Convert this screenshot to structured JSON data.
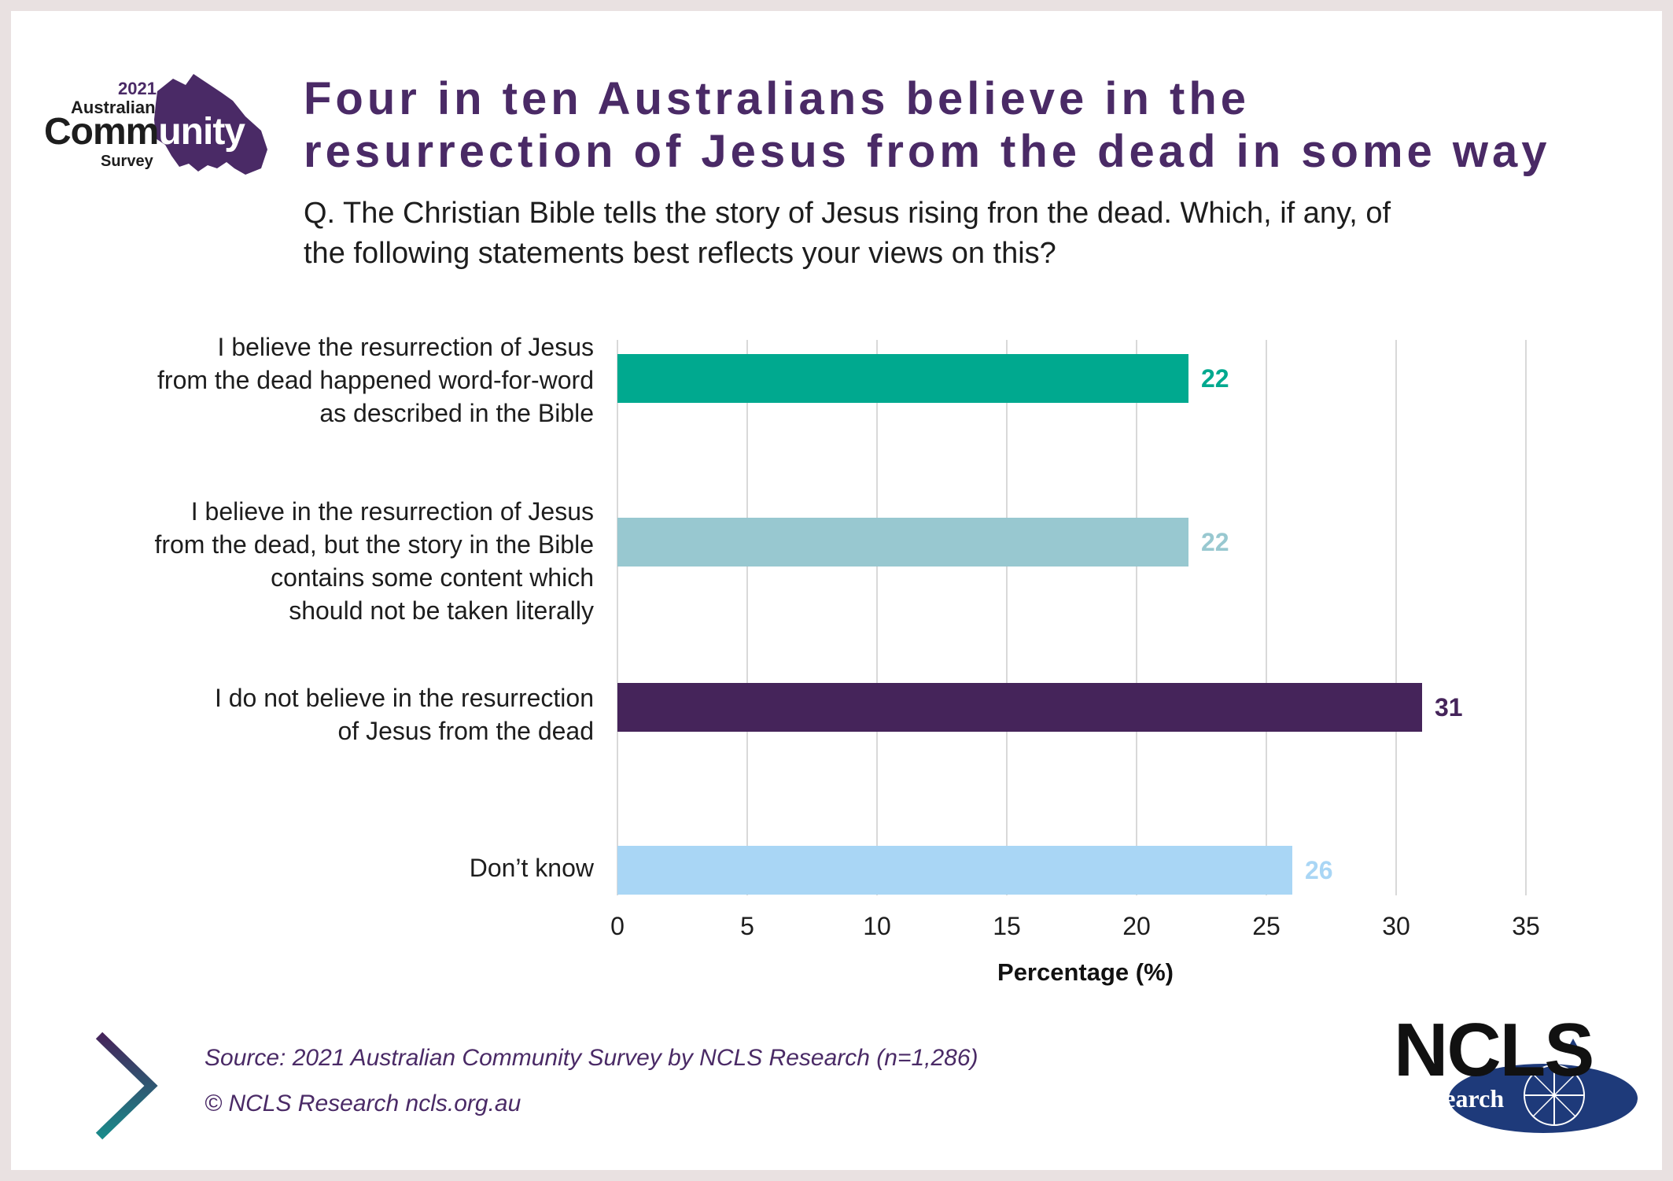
{
  "logo": {
    "year": "2021",
    "line1": "Australian",
    "line2a": "Comm",
    "line2b": "unity",
    "line3": "Survey"
  },
  "title_line1": "Four in ten Australians believe in the",
  "title_line2": "resurrection of Jesus from the dead in some way",
  "question_line1": "Q. The Christian Bible tells the story of Jesus rising fron the dead. Which, if any, of",
  "question_line2": "the following statements best reflects your views on this?",
  "chart_data": {
    "type": "bar",
    "orientation": "horizontal",
    "categories": [
      [
        "I believe the resurrection of Jesus",
        "from the dead happened word-for-word",
        "as described in the Bible"
      ],
      [
        "I believe in the resurrection of Jesus",
        "from the dead, but the story in the Bible",
        "contains some content which",
        "should not be taken literally"
      ],
      [
        "I do not believe in the resurrection",
        "of Jesus from the dead"
      ],
      [
        "Don’t know"
      ]
    ],
    "values": [
      22,
      22,
      31,
      26
    ],
    "colors": [
      "#00a98f",
      "#98c8d0",
      "#45245a",
      "#a9d6f5"
    ],
    "xlabel": "Percentage (%)",
    "xlim": [
      0,
      35
    ],
    "xticks": [
      "0",
      "5",
      "10",
      "15",
      "20",
      "25",
      "30",
      "35"
    ],
    "grid": true,
    "data_labels": [
      "22",
      "22",
      "31",
      "26"
    ]
  },
  "source": "Source: 2021 Australian Community Survey by NCLS Research (n=1,286)",
  "copyright": "© NCLS Research   ncls.org.au",
  "ncls_logo": {
    "name": "NCLS",
    "sub": "research"
  },
  "colors": {
    "brand_purple": "#4a2a66",
    "teal": "#00a98f",
    "frame": "#e9e1e1"
  },
  "icons": [
    "australia-map-icon",
    "chevron-right-icon",
    "compass-globe-icon"
  ]
}
